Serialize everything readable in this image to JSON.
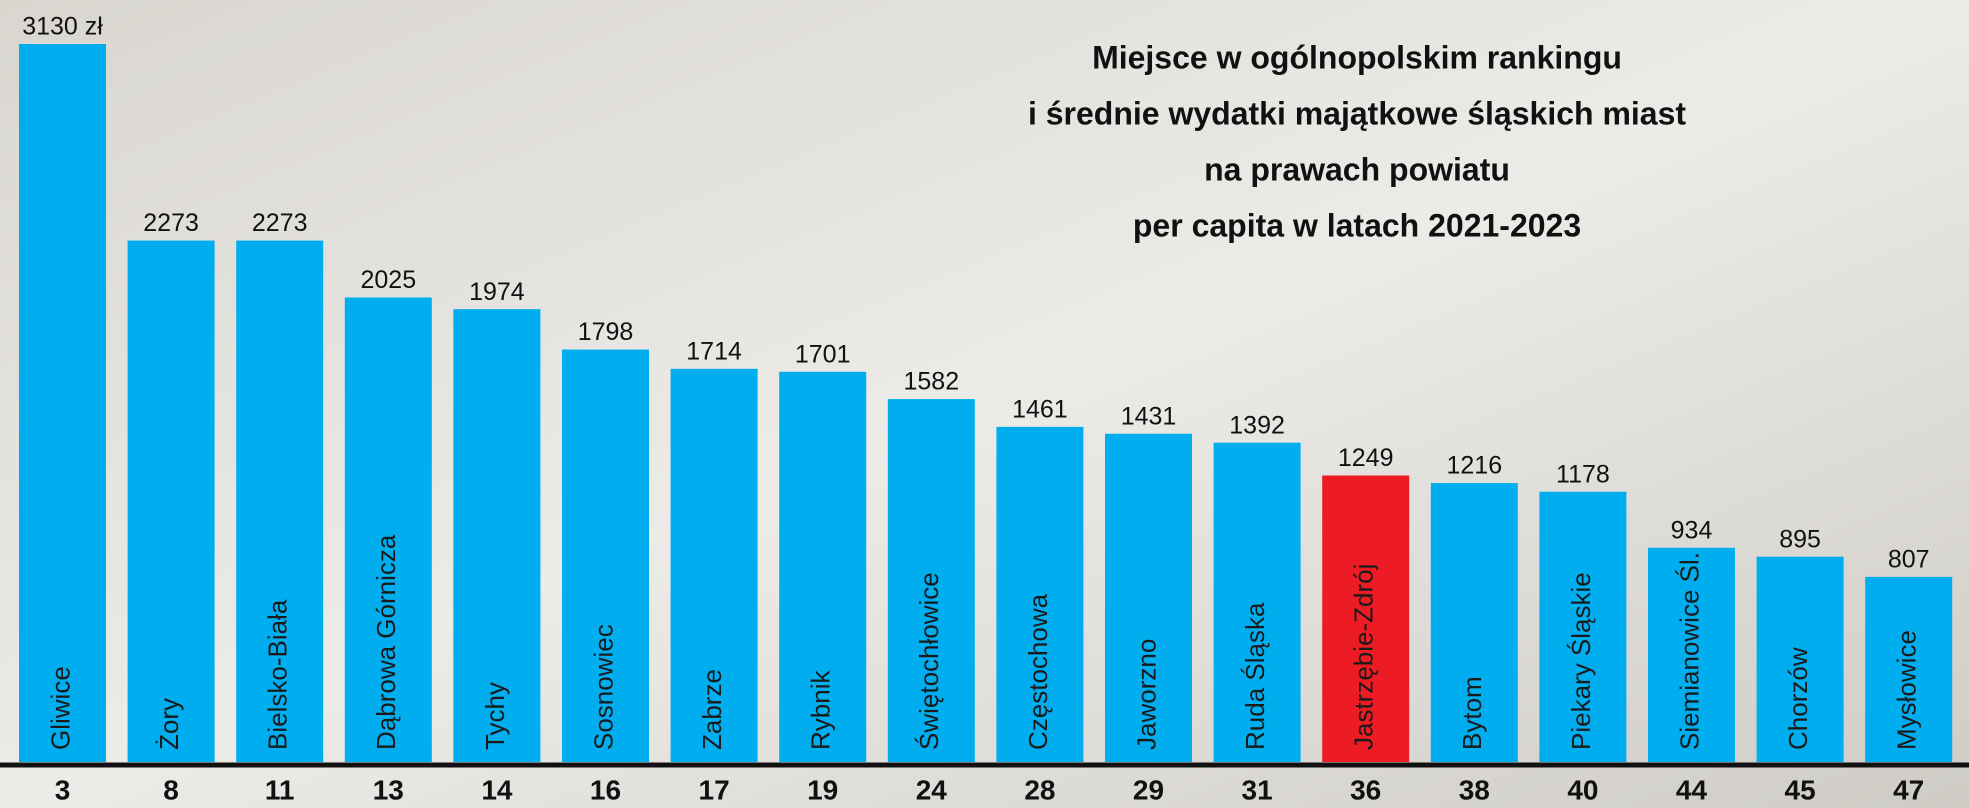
{
  "chart_data": {
    "type": "bar",
    "title": [
      "Miejsce w ogólnopolskim rankingu",
      "i średnie wydatki majątkowe śląskich miast",
      "na prawach powiatu",
      "per capita w latach 2021-2023"
    ],
    "categories": [
      "Gliwice",
      "Żory",
      "Bielsko-Biała",
      "Dąbrowa Górnicza",
      "Tychy",
      "Sosnowiec",
      "Zabrze",
      "Rybnik",
      "Świętochłowice",
      "Częstochowa",
      "Jaworzno",
      "Ruda Śląska",
      "Jastrzębie-Zdrój",
      "Bytom",
      "Piekary Śląskie",
      "Siemianowice Śl.",
      "Chorzów",
      "Mysłowice"
    ],
    "values": [
      3130,
      2273,
      2273,
      2025,
      1974,
      1798,
      1714,
      1701,
      1582,
      1461,
      1431,
      1392,
      1249,
      1216,
      1178,
      934,
      895,
      807
    ],
    "value_labels": [
      "3130 zł",
      "2273",
      "2273",
      "2025",
      "1974",
      "1798",
      "1714",
      "1701",
      "1582",
      "1461",
      "1431",
      "1392",
      "1249",
      "1216",
      "1178",
      "934",
      "895",
      "807"
    ],
    "ranks": [
      3,
      8,
      11,
      13,
      14,
      16,
      17,
      19,
      24,
      28,
      29,
      31,
      36,
      38,
      40,
      44,
      45,
      47
    ],
    "colors": [
      "#00aeef",
      "#00aeef",
      "#00aeef",
      "#00aeef",
      "#00aeef",
      "#00aeef",
      "#00aeef",
      "#00aeef",
      "#00aeef",
      "#00aeef",
      "#00aeef",
      "#00aeef",
      "#ed1c24",
      "#00aeef",
      "#00aeef",
      "#00aeef",
      "#00aeef",
      "#00aeef"
    ]
  }
}
